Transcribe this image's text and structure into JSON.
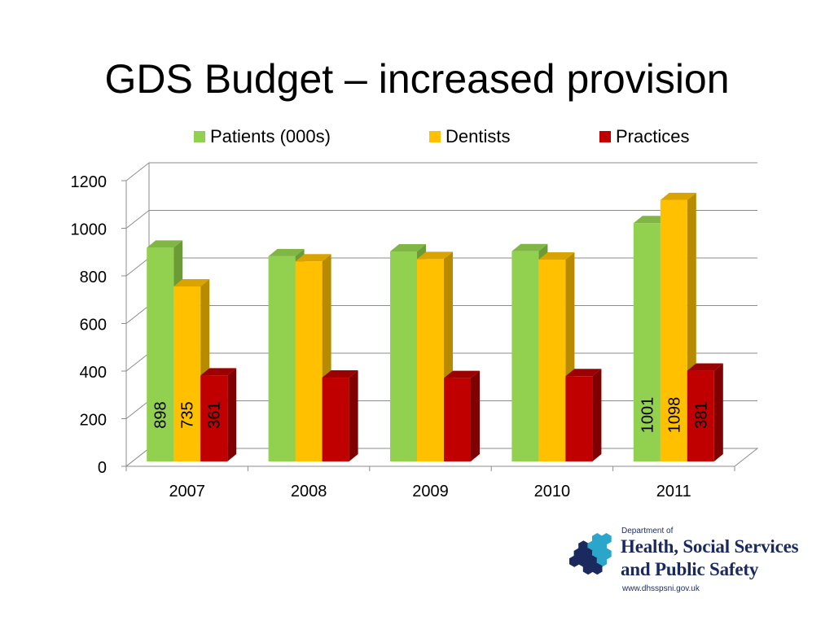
{
  "page": {
    "title": "GDS Budget – increased provision"
  },
  "chart_data": {
    "type": "bar",
    "categories": [
      "2007",
      "2008",
      "2009",
      "2010",
      "2011"
    ],
    "series": [
      {
        "name": "Patients (000s)",
        "color": "#92d050",
        "side_color": "#6a9b34",
        "top_color": "#7fb644",
        "values": [
          898,
          862,
          882,
          883,
          1001
        ]
      },
      {
        "name": "Dentists",
        "color": "#ffc000",
        "side_color": "#b88a00",
        "top_color": "#d9a300",
        "values": [
          735,
          840,
          850,
          848,
          1098
        ]
      },
      {
        "name": "Practices",
        "color": "#c00000",
        "side_color": "#7f0000",
        "top_color": "#9c0000",
        "values": [
          361,
          352,
          350,
          358,
          381
        ]
      }
    ],
    "data_labels": {
      "2007": [
        "898",
        "735",
        "361"
      ],
      "2011": [
        "1001",
        "1098",
        "381"
      ]
    },
    "y_ticks": [
      "0",
      "200",
      "400",
      "600",
      "800",
      "1000",
      "1200"
    ],
    "ylim": [
      0,
      1200
    ],
    "grid": true,
    "legend_position": "top",
    "xlabel": "",
    "ylabel": ""
  },
  "logo": {
    "dept": "Department of",
    "line1": "Health, Social Services",
    "line2": "and Public Safety",
    "url": "www.dhsspsni.gov.uk",
    "color": "#1b2a5e"
  }
}
